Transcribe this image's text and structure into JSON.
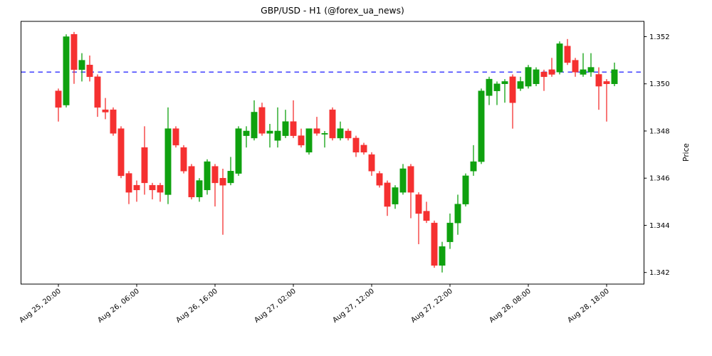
{
  "figure": {
    "background": "#ffffff"
  },
  "chart_data": {
    "type": "candlestick",
    "title": "GBP/USD - H1 (@forex_ua_news)",
    "symbol": "GBP/USD",
    "timeframe": "H1",
    "xlabel": "",
    "ylabel": "Price",
    "grid": false,
    "legend": false,
    "ylim": [
      1.3415,
      1.3527
    ],
    "y_axis_side": "right",
    "y_ticks": [
      1.342,
      1.344,
      1.346,
      1.348,
      1.35,
      1.352
    ],
    "y_tick_labels": [
      "1.342",
      "1.344",
      "1.346",
      "1.348",
      "1.350",
      "1.352"
    ],
    "x_tick_indices": [
      0,
      10,
      20,
      30,
      40,
      50,
      60,
      70
    ],
    "x_tick_labels": [
      "Aug 25, 20:00",
      "Aug 26, 06:00",
      "Aug 26, 16:00",
      "Aug 27, 02:00",
      "Aug 27, 12:00",
      "Aug 27, 22:00",
      "Aug 28, 08:00",
      "Aug 28, 18:00"
    ],
    "x_tick_rotation_deg": -38,
    "hline": {
      "value": 1.3505,
      "color": "#0000ff",
      "style": "dashed"
    },
    "up_color": "#0fa10f",
    "down_color": "#f53030",
    "candles": [
      {
        "time": "Aug 25, 20:00",
        "o": 1.3497,
        "h": 1.3498,
        "l": 1.3484,
        "c": 1.349
      },
      {
        "time": "Aug 25, 21:00",
        "o": 1.3491,
        "h": 1.3521,
        "l": 1.349,
        "c": 1.352
      },
      {
        "time": "Aug 25, 22:00",
        "o": 1.3521,
        "h": 1.3522,
        "l": 1.35,
        "c": 1.3506
      },
      {
        "time": "Aug 25, 23:00",
        "o": 1.3506,
        "h": 1.3513,
        "l": 1.3501,
        "c": 1.351
      },
      {
        "time": "Aug 26, 00:00",
        "o": 1.3508,
        "h": 1.3512,
        "l": 1.3501,
        "c": 1.3503
      },
      {
        "time": "Aug 26, 01:00",
        "o": 1.3503,
        "h": 1.3504,
        "l": 1.3486,
        "c": 1.349
      },
      {
        "time": "Aug 26, 02:00",
        "o": 1.3489,
        "h": 1.3494,
        "l": 1.3485,
        "c": 1.3488
      },
      {
        "time": "Aug 26, 03:00",
        "o": 1.3489,
        "h": 1.349,
        "l": 1.3478,
        "c": 1.3479
      },
      {
        "time": "Aug 26, 04:00",
        "o": 1.3481,
        "h": 1.3482,
        "l": 1.346,
        "c": 1.3461
      },
      {
        "time": "Aug 26, 05:00",
        "o": 1.3462,
        "h": 1.3463,
        "l": 1.3449,
        "c": 1.3454
      },
      {
        "time": "Aug 26, 06:00",
        "o": 1.3457,
        "h": 1.3459,
        "l": 1.345,
        "c": 1.3455
      },
      {
        "time": "Aug 26, 07:00",
        "o": 1.3473,
        "h": 1.3482,
        "l": 1.3453,
        "c": 1.3458
      },
      {
        "time": "Aug 26, 08:00",
        "o": 1.3457,
        "h": 1.3458,
        "l": 1.3451,
        "c": 1.3455
      },
      {
        "time": "Aug 26, 09:00",
        "o": 1.3457,
        "h": 1.3458,
        "l": 1.345,
        "c": 1.3454
      },
      {
        "time": "Aug 26, 10:00",
        "o": 1.3453,
        "h": 1.349,
        "l": 1.3449,
        "c": 1.3481
      },
      {
        "time": "Aug 26, 11:00",
        "o": 1.3481,
        "h": 1.3482,
        "l": 1.3473,
        "c": 1.3474
      },
      {
        "time": "Aug 26, 12:00",
        "o": 1.3473,
        "h": 1.3474,
        "l": 1.3462,
        "c": 1.3463
      },
      {
        "time": "Aug 26, 13:00",
        "o": 1.3465,
        "h": 1.3466,
        "l": 1.3451,
        "c": 1.3452
      },
      {
        "time": "Aug 26, 14:00",
        "o": 1.3452,
        "h": 1.346,
        "l": 1.345,
        "c": 1.3459
      },
      {
        "time": "Aug 26, 15:00",
        "o": 1.3455,
        "h": 1.3468,
        "l": 1.3453,
        "c": 1.3467
      },
      {
        "time": "Aug 26, 16:00",
        "o": 1.3465,
        "h": 1.3466,
        "l": 1.3448,
        "c": 1.3458
      },
      {
        "time": "Aug 26, 17:00",
        "o": 1.346,
        "h": 1.3464,
        "l": 1.3436,
        "c": 1.3457
      },
      {
        "time": "Aug 26, 18:00",
        "o": 1.3458,
        "h": 1.3469,
        "l": 1.3457,
        "c": 1.3463
      },
      {
        "time": "Aug 26, 19:00",
        "o": 1.3462,
        "h": 1.3482,
        "l": 1.3461,
        "c": 1.3481
      },
      {
        "time": "Aug 26, 20:00",
        "o": 1.3478,
        "h": 1.3482,
        "l": 1.3473,
        "c": 1.348
      },
      {
        "time": "Aug 26, 21:00",
        "o": 1.3477,
        "h": 1.3493,
        "l": 1.3476,
        "c": 1.3488
      },
      {
        "time": "Aug 26, 22:00",
        "o": 1.349,
        "h": 1.3492,
        "l": 1.3478,
        "c": 1.3479
      },
      {
        "time": "Aug 26, 23:00",
        "o": 1.3479,
        "h": 1.3483,
        "l": 1.3473,
        "c": 1.348
      },
      {
        "time": "Aug 27, 00:00",
        "o": 1.3476,
        "h": 1.349,
        "l": 1.3473,
        "c": 1.348
      },
      {
        "time": "Aug 27, 01:00",
        "o": 1.3478,
        "h": 1.3489,
        "l": 1.3477,
        "c": 1.3484
      },
      {
        "time": "Aug 27, 02:00",
        "o": 1.3484,
        "h": 1.3493,
        "l": 1.3477,
        "c": 1.3478
      },
      {
        "time": "Aug 27, 03:00",
        "o": 1.3478,
        "h": 1.3481,
        "l": 1.3473,
        "c": 1.3474
      },
      {
        "time": "Aug 27, 04:00",
        "o": 1.3471,
        "h": 1.3481,
        "l": 1.347,
        "c": 1.3481
      },
      {
        "time": "Aug 27, 05:00",
        "o": 1.3481,
        "h": 1.3486,
        "l": 1.3478,
        "c": 1.3479
      },
      {
        "time": "Aug 27, 06:00",
        "o": 1.3479,
        "h": 1.348,
        "l": 1.3473,
        "c": 1.3479
      },
      {
        "time": "Aug 27, 07:00",
        "o": 1.3489,
        "h": 1.349,
        "l": 1.3476,
        "c": 1.3477
      },
      {
        "time": "Aug 27, 08:00",
        "o": 1.3477,
        "h": 1.3484,
        "l": 1.3476,
        "c": 1.3481
      },
      {
        "time": "Aug 27, 09:00",
        "o": 1.348,
        "h": 1.3481,
        "l": 1.3476,
        "c": 1.3477
      },
      {
        "time": "Aug 27, 10:00",
        "o": 1.3477,
        "h": 1.3478,
        "l": 1.3469,
        "c": 1.3471
      },
      {
        "time": "Aug 27, 11:00",
        "o": 1.3474,
        "h": 1.3475,
        "l": 1.347,
        "c": 1.3471
      },
      {
        "time": "Aug 27, 12:00",
        "o": 1.347,
        "h": 1.3471,
        "l": 1.3461,
        "c": 1.3463
      },
      {
        "time": "Aug 27, 13:00",
        "o": 1.3462,
        "h": 1.3463,
        "l": 1.3456,
        "c": 1.3457
      },
      {
        "time": "Aug 27, 14:00",
        "o": 1.3458,
        "h": 1.3459,
        "l": 1.3444,
        "c": 1.3448
      },
      {
        "time": "Aug 27, 15:00",
        "o": 1.3449,
        "h": 1.3457,
        "l": 1.3447,
        "c": 1.3456
      },
      {
        "time": "Aug 27, 16:00",
        "o": 1.3454,
        "h": 1.3466,
        "l": 1.3453,
        "c": 1.3464
      },
      {
        "time": "Aug 27, 17:00",
        "o": 1.3465,
        "h": 1.3466,
        "l": 1.3443,
        "c": 1.3454
      },
      {
        "time": "Aug 27, 18:00",
        "o": 1.3453,
        "h": 1.3454,
        "l": 1.3432,
        "c": 1.3445
      },
      {
        "time": "Aug 27, 19:00",
        "o": 1.3446,
        "h": 1.345,
        "l": 1.3441,
        "c": 1.3442
      },
      {
        "time": "Aug 27, 20:00",
        "o": 1.3441,
        "h": 1.3442,
        "l": 1.3422,
        "c": 1.3423
      },
      {
        "time": "Aug 27, 21:00",
        "o": 1.3423,
        "h": 1.3433,
        "l": 1.342,
        "c": 1.3431
      },
      {
        "time": "Aug 27, 22:00",
        "o": 1.3433,
        "h": 1.3445,
        "l": 1.343,
        "c": 1.3441
      },
      {
        "time": "Aug 27, 23:00",
        "o": 1.3441,
        "h": 1.3453,
        "l": 1.3436,
        "c": 1.3449
      },
      {
        "time": "Aug 28, 00:00",
        "o": 1.3449,
        "h": 1.3462,
        "l": 1.3448,
        "c": 1.3461
      },
      {
        "time": "Aug 28, 01:00",
        "o": 1.3463,
        "h": 1.3474,
        "l": 1.3461,
        "c": 1.3467
      },
      {
        "time": "Aug 28, 02:00",
        "o": 1.3467,
        "h": 1.3498,
        "l": 1.3466,
        "c": 1.3497
      },
      {
        "time": "Aug 28, 03:00",
        "o": 1.3495,
        "h": 1.3503,
        "l": 1.3491,
        "c": 1.3502
      },
      {
        "time": "Aug 28, 04:00",
        "o": 1.3497,
        "h": 1.3501,
        "l": 1.3491,
        "c": 1.35
      },
      {
        "time": "Aug 28, 05:00",
        "o": 1.35,
        "h": 1.3502,
        "l": 1.3492,
        "c": 1.3501
      },
      {
        "time": "Aug 28, 06:00",
        "o": 1.3503,
        "h": 1.3504,
        "l": 1.3481,
        "c": 1.3492
      },
      {
        "time": "Aug 28, 07:00",
        "o": 1.3498,
        "h": 1.3503,
        "l": 1.3497,
        "c": 1.3501
      },
      {
        "time": "Aug 28, 08:00",
        "o": 1.3499,
        "h": 1.3508,
        "l": 1.3498,
        "c": 1.3507
      },
      {
        "time": "Aug 28, 09:00",
        "o": 1.35,
        "h": 1.3507,
        "l": 1.3499,
        "c": 1.3506
      },
      {
        "time": "Aug 28, 10:00",
        "o": 1.3505,
        "h": 1.3506,
        "l": 1.3497,
        "c": 1.3503
      },
      {
        "time": "Aug 28, 11:00",
        "o": 1.3506,
        "h": 1.3511,
        "l": 1.3503,
        "c": 1.3504
      },
      {
        "time": "Aug 28, 12:00",
        "o": 1.3505,
        "h": 1.3518,
        "l": 1.3504,
        "c": 1.3517
      },
      {
        "time": "Aug 28, 13:00",
        "o": 1.3516,
        "h": 1.3519,
        "l": 1.3508,
        "c": 1.3509
      },
      {
        "time": "Aug 28, 14:00",
        "o": 1.351,
        "h": 1.3511,
        "l": 1.3503,
        "c": 1.3505
      },
      {
        "time": "Aug 28, 15:00",
        "o": 1.3504,
        "h": 1.3513,
        "l": 1.3503,
        "c": 1.3506
      },
      {
        "time": "Aug 28, 16:00",
        "o": 1.3505,
        "h": 1.3513,
        "l": 1.3503,
        "c": 1.3507
      },
      {
        "time": "Aug 28, 17:00",
        "o": 1.3504,
        "h": 1.3507,
        "l": 1.3489,
        "c": 1.3499
      },
      {
        "time": "Aug 28, 18:00",
        "o": 1.3501,
        "h": 1.3502,
        "l": 1.3484,
        "c": 1.35
      },
      {
        "time": "Aug 28, 19:00",
        "o": 1.35,
        "h": 1.3509,
        "l": 1.3499,
        "c": 1.3506
      }
    ]
  }
}
